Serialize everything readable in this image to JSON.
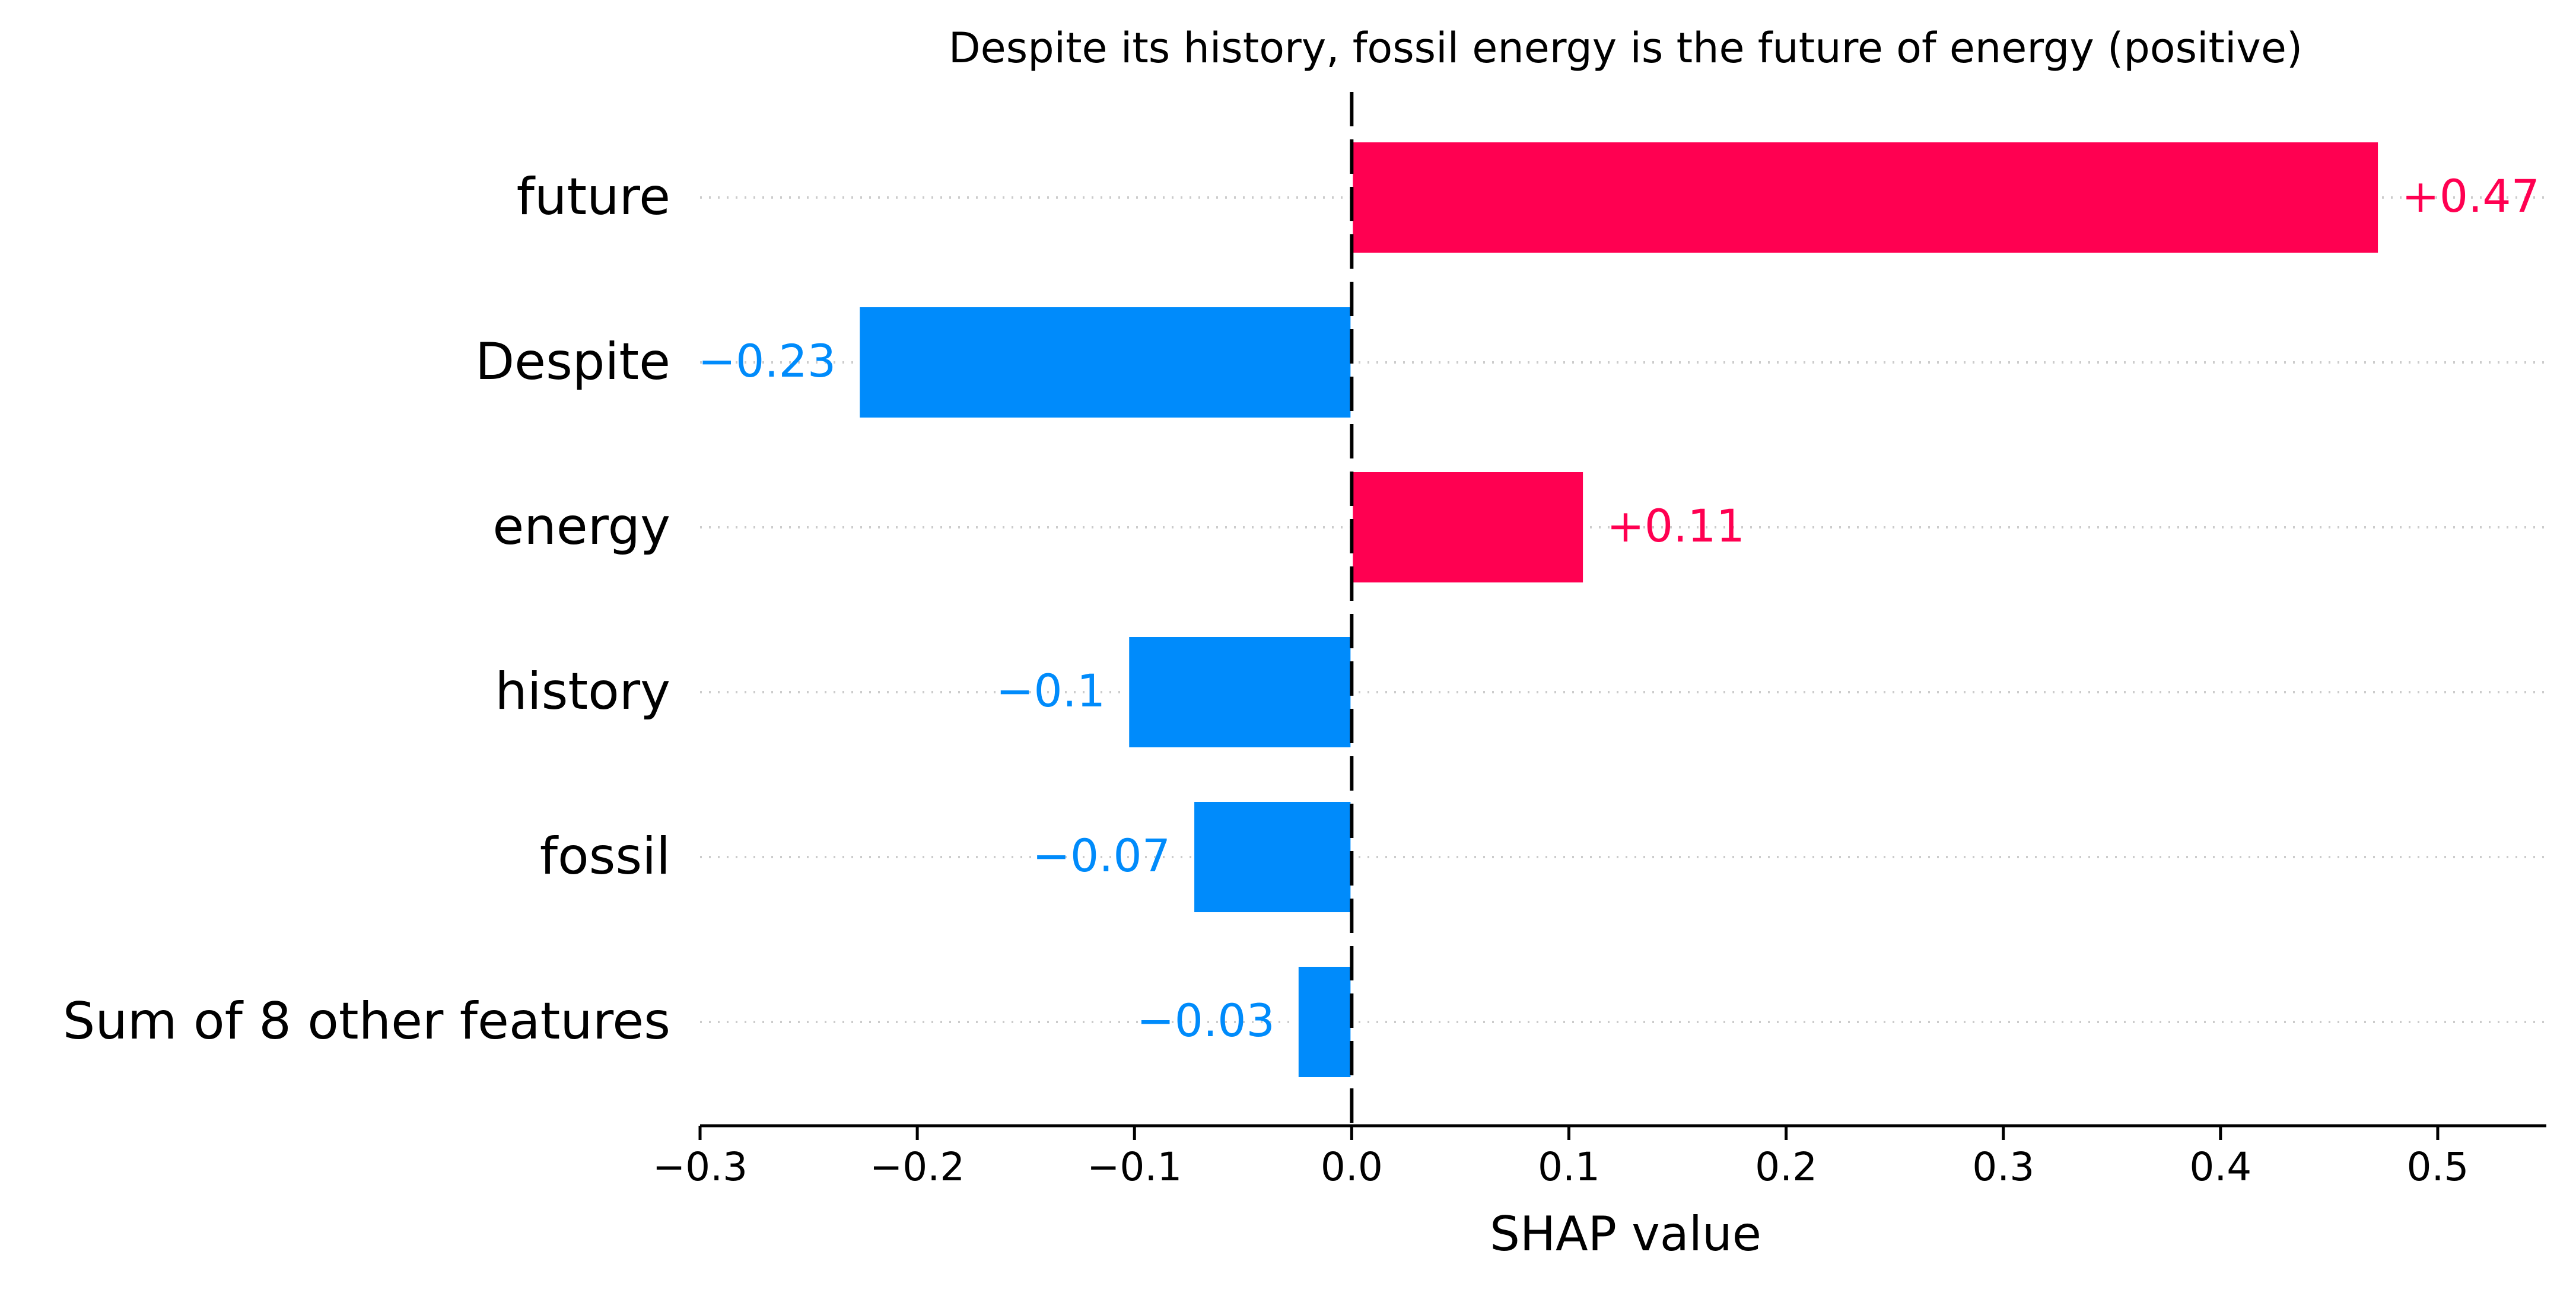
{
  "chart_data": {
    "type": "bar",
    "orientation": "horizontal",
    "title": "Despite its history, fossil energy is the future of energy (positive)",
    "xlabel": "SHAP value",
    "ylabel": "",
    "xlim": [
      -0.3,
      0.55
    ],
    "xticks": [
      -0.3,
      -0.2,
      -0.1,
      0.0,
      0.1,
      0.2,
      0.3,
      0.4,
      0.5
    ],
    "xtick_labels": [
      "−0.3",
      "−0.2",
      "−0.1",
      "0.0",
      "0.1",
      "0.2",
      "0.3",
      "0.4",
      "0.5"
    ],
    "categories": [
      "future",
      "Despite",
      "energy",
      "history",
      "fossil",
      "Sum of 8 other features"
    ],
    "values": [
      0.473,
      -0.227,
      0.107,
      -0.103,
      -0.073,
      -0.025
    ],
    "value_labels": [
      "+0.47",
      "−0.23",
      "+0.11",
      "−0.1",
      "−0.07",
      "−0.03"
    ],
    "grid": "dotted horizontal guide per row",
    "baseline": 0.0,
    "colors": {
      "positive": "#ff0051",
      "negative": "#008bfb",
      "axis": "#000000",
      "gridline": "#cccccc",
      "text": "#000000"
    }
  }
}
